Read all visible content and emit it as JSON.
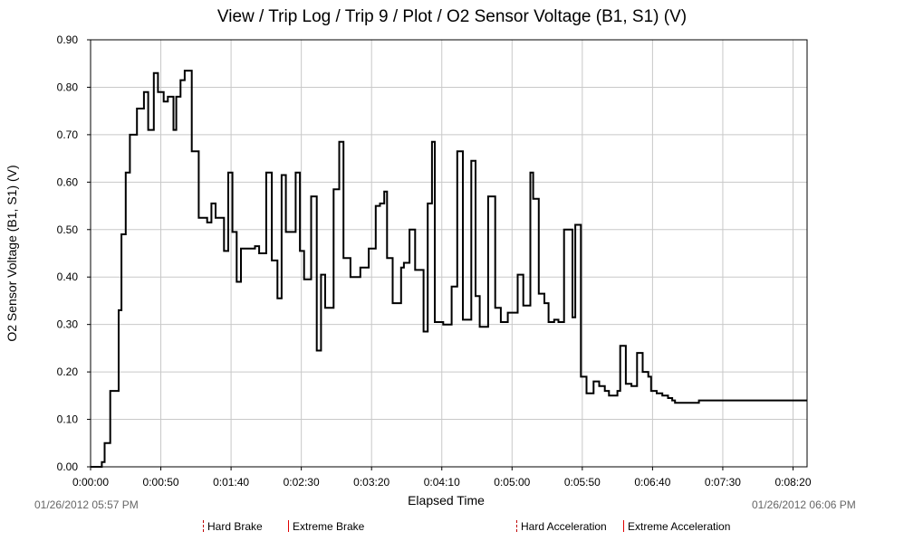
{
  "chart_data": {
    "type": "line",
    "title": "View / Trip Log / Trip 9 / Plot / O2 Sensor Voltage (B1, S1) (V)",
    "xlabel": "Elapsed Time",
    "ylabel": "O2 Sensor Voltage (B1, S1) (V)",
    "x_unit": "seconds elapsed",
    "xlim": [
      0,
      510
    ],
    "ylim": [
      0,
      0.9
    ],
    "x_tick_labels": [
      "0:00:00",
      "0:00:50",
      "0:01:40",
      "0:02:30",
      "0:03:20",
      "0:04:10",
      "0:05:00",
      "0:05:50",
      "0:06:40",
      "0:07:30",
      "0:08:20"
    ],
    "y_tick_labels": [
      "0.00",
      "0.10",
      "0.20",
      "0.30",
      "0.40",
      "0.50",
      "0.60",
      "0.70",
      "0.80",
      "0.90"
    ],
    "grid": true,
    "start_time": "01/26/2012 05:57 PM",
    "end_time": "01/26/2012 06:06 PM",
    "series": [
      {
        "step": true,
        "x": [
          0,
          8,
          10,
          14,
          16,
          20,
          22,
          25,
          28,
          31,
          33,
          35,
          38,
          41,
          45,
          48,
          50,
          52,
          55,
          59,
          61,
          64,
          67,
          72,
          77,
          79,
          83,
          86,
          89,
          91,
          95,
          98,
          101,
          104,
          107,
          109,
          113,
          117,
          120,
          123,
          125,
          129,
          133,
          136,
          139,
          142,
          146,
          149,
          152,
          155,
          157,
          161,
          164,
          167,
          169,
          173,
          177,
          180,
          185,
          188,
          192,
          194,
          198,
          203,
          206,
          209,
          211,
          215,
          218,
          221,
          223,
          227,
          231,
          234,
          237,
          240,
          243,
          245,
          251,
          254,
          257,
          261,
          265,
          269,
          271,
          274,
          277,
          281,
          283,
          288,
          292,
          295,
          297,
          300,
          304,
          308,
          313,
          315,
          319,
          323,
          326,
          330,
          333,
          337,
          341,
          343,
          345,
          349,
          353,
          355,
          358,
          362,
          366,
          369,
          372,
          375,
          377,
          381,
          385,
          389,
          393,
          397,
          399,
          403,
          407,
          411,
          414,
          416,
          420,
          423,
          427,
          433,
          437,
          441,
          445,
          449,
          452,
          457,
          463,
          467,
          471,
          476,
          480,
          484,
          488,
          493,
          497,
          502,
          506,
          510
        ],
        "values": [
          0.0,
          0.01,
          0.05,
          0.16,
          0.16,
          0.33,
          0.49,
          0.62,
          0.7,
          0.7,
          0.755,
          0.755,
          0.79,
          0.71,
          0.83,
          0.79,
          0.79,
          0.77,
          0.78,
          0.71,
          0.78,
          0.815,
          0.835,
          0.665,
          0.525,
          0.525,
          0.515,
          0.555,
          0.525,
          0.525,
          0.455,
          0.62,
          0.495,
          0.39,
          0.46,
          0.46,
          0.46,
          0.465,
          0.45,
          0.45,
          0.62,
          0.435,
          0.355,
          0.615,
          0.495,
          0.495,
          0.62,
          0.455,
          0.395,
          0.395,
          0.57,
          0.245,
          0.405,
          0.335,
          0.335,
          0.585,
          0.685,
          0.44,
          0.4,
          0.4,
          0.42,
          0.42,
          0.46,
          0.55,
          0.555,
          0.58,
          0.44,
          0.345,
          0.345,
          0.42,
          0.43,
          0.5,
          0.415,
          0.415,
          0.285,
          0.555,
          0.685,
          0.305,
          0.3,
          0.3,
          0.38,
          0.665,
          0.31,
          0.31,
          0.645,
          0.36,
          0.295,
          0.295,
          0.57,
          0.335,
          0.305,
          0.305,
          0.325,
          0.325,
          0.405,
          0.34,
          0.62,
          0.565,
          0.365,
          0.345,
          0.305,
          0.31,
          0.305,
          0.5,
          0.5,
          0.315,
          0.51,
          0.19,
          0.155,
          0.155,
          0.18,
          0.17,
          0.16,
          0.15,
          0.15,
          0.16,
          0.255,
          0.175,
          0.17,
          0.24,
          0.2,
          0.19,
          0.16,
          0.155,
          0.15,
          0.145,
          0.14,
          0.135,
          0.135,
          0.135,
          0.135,
          0.14,
          0.14,
          0.14,
          0.14,
          0.14,
          0.14,
          0.14,
          0.14,
          0.14,
          0.14,
          0.14,
          0.14,
          0.14,
          0.14,
          0.14,
          0.14,
          0.14,
          0.14,
          0.14
        ]
      }
    ]
  },
  "legend": {
    "hard_brake": "Hard Brake",
    "extreme_brake": "Extreme Brake",
    "hard_acceleration": "Hard Acceleration",
    "extreme_acceleration": "Extreme Acceleration"
  },
  "colors": {
    "line": "#000000",
    "grid": "#c8c8c8",
    "timestamp": "#666666",
    "marker": "#e00000"
  }
}
